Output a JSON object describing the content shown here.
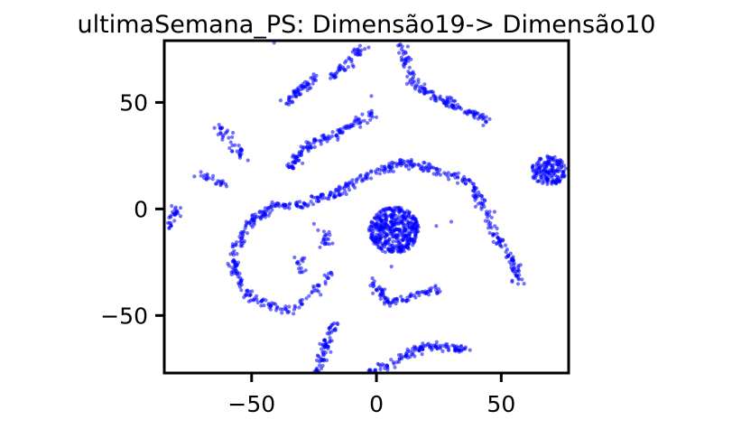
{
  "chart_data": {
    "type": "scatter",
    "title": "ultimaSemana_PS: Dimensão19-> Dimensão10",
    "xlabel": "",
    "ylabel": "",
    "xlim": [
      -85,
      77
    ],
    "ylim": [
      -77,
      79
    ],
    "xticks": [
      -50,
      0,
      50
    ],
    "yticks": [
      -50,
      0,
      50
    ],
    "xtick_labels": [
      "−50",
      "0",
      "50"
    ],
    "ytick_labels": [
      "−50",
      "0",
      "50"
    ],
    "grid": false,
    "point_color": "#0000ff",
    "series": [
      {
        "clusters": [
          {
            "shape": "polyline",
            "points": [
              [
                -84,
                -10
              ],
              [
                -82,
                -4
              ],
              [
                -80,
                0
              ]
            ],
            "n": 30
          },
          {
            "shape": "polyline",
            "points": [
              [
                -36,
                50
              ],
              [
                -30,
                56
              ],
              [
                -25,
                61
              ]
            ],
            "n": 60
          },
          {
            "shape": "polyline",
            "points": [
              [
                -18,
                62
              ],
              [
                -10,
                70
              ],
              [
                -5,
                76
              ]
            ],
            "n": 50
          },
          {
            "shape": "polyline",
            "points": [
              [
                -35,
                18
              ],
              [
                -30,
                28
              ],
              [
                -18,
                34
              ],
              [
                0,
                45
              ]
            ],
            "n": 130
          },
          {
            "shape": "polyline",
            "points": [
              [
                10,
                77
              ],
              [
                12,
                68
              ],
              [
                14,
                59
              ],
              [
                25,
                52
              ],
              [
                45,
                41
              ]
            ],
            "n": 150
          },
          {
            "shape": "polyline",
            "points": [
              [
                -64,
                38
              ],
              [
                -58,
                32
              ],
              [
                -52,
                24
              ]
            ],
            "n": 40
          },
          {
            "shape": "polyline",
            "points": [
              [
                -72,
                16
              ],
              [
                -67,
                15
              ],
              [
                -61,
                12
              ]
            ],
            "n": 25
          },
          {
            "shape": "polyline",
            "points": [
              [
                -42,
                1
              ],
              [
                -30,
                2
              ],
              [
                -15,
                8
              ],
              [
                -5,
                15
              ],
              [
                10,
                22
              ],
              [
                25,
                18
              ],
              [
                38,
                12
              ],
              [
                43,
                0
              ],
              [
                48,
                -12
              ],
              [
                55,
                -25
              ],
              [
                57,
                -35
              ]
            ],
            "n": 360
          },
          {
            "shape": "polyline",
            "points": [
              [
                -42,
                0
              ],
              [
                -50,
                -5
              ],
              [
                -55,
                -15
              ],
              [
                -58,
                -28
              ],
              [
                -52,
                -40
              ],
              [
                -42,
                -46
              ],
              [
                -35,
                -47
              ]
            ],
            "n": 170
          },
          {
            "shape": "polyline",
            "points": [
              [
                -34,
                -47
              ],
              [
                -25,
                -40
              ],
              [
                -20,
                -33
              ],
              [
                -17,
                -29
              ]
            ],
            "n": 35
          },
          {
            "shape": "polyline",
            "points": [
              [
                -2,
                -33
              ],
              [
                5,
                -44
              ],
              [
                15,
                -41
              ],
              [
                26,
                -37
              ]
            ],
            "n": 90
          },
          {
            "shape": "polyline",
            "points": [
              [
                -30,
                -22
              ],
              [
                -31,
                -26
              ],
              [
                -30,
                -30
              ]
            ],
            "n": 15
          },
          {
            "shape": "polyline",
            "points": [
              [
                -22,
                -10
              ],
              [
                -20,
                -15
              ],
              [
                -21,
                -19
              ]
            ],
            "n": 20
          },
          {
            "shape": "polyline",
            "points": [
              [
                -24,
                -77
              ],
              [
                -20,
                -64
              ],
              [
                -17,
                -53
              ]
            ],
            "n": 70
          },
          {
            "shape": "polyline",
            "points": [
              [
                -3,
                -77
              ],
              [
                10,
                -70
              ],
              [
                20,
                -64
              ],
              [
                36,
                -66
              ]
            ],
            "n": 130
          },
          {
            "shape": "blob",
            "center": [
              7,
              -10
            ],
            "radius": [
              10,
              11
            ],
            "n": 450
          },
          {
            "shape": "blob",
            "center": [
              69,
              18
            ],
            "radius": [
              7,
              7
            ],
            "n": 170
          },
          {
            "shape": "points",
            "points": [
              [
                -2,
                53
              ],
              [
                -41,
                78
              ],
              [
                24,
                -8
              ],
              [
                30,
                -6
              ],
              [
                6,
                -27
              ],
              [
                -25,
                -7
              ]
            ],
            "n": 6
          }
        ]
      }
    ]
  }
}
